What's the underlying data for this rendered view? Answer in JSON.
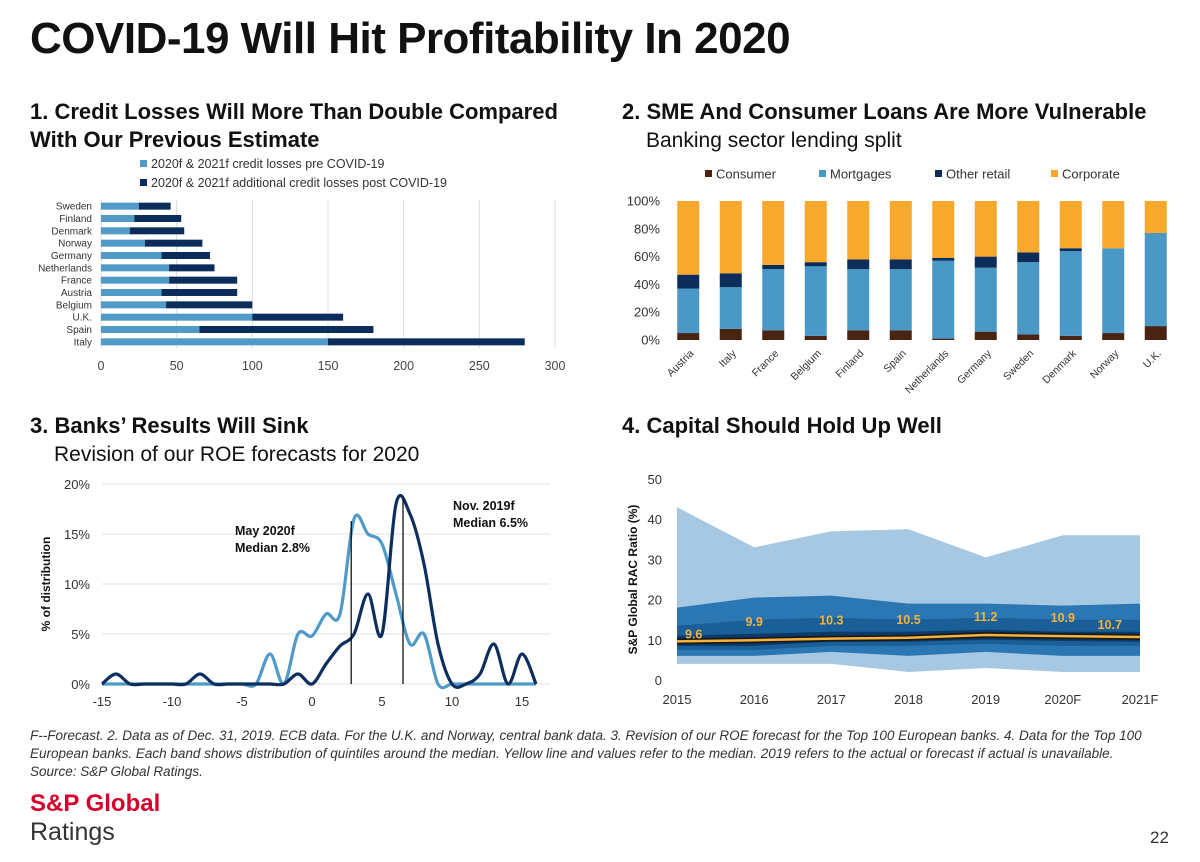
{
  "page": {
    "title": "COVID-19 Will Hit Profitability In 2020",
    "footnote": "F--Forecast. 2. Data as of Dec. 31, 2019. ECB data. For the U.K. and Norway, central bank data. 3. Revision of our ROE forecast for the Top 100 European banks. 4. Data for the Top 100 European banks. Each band shows distribution of quintiles around the median. Yellow line and values refer to the median. 2019 refers to the actual or forecast if actual is unavailable. Source: S&P Global Ratings.",
    "logo_line1": "S&P Global",
    "logo_line2": "Ratings",
    "page_number": "22"
  },
  "panels": {
    "p1": {
      "title_line1": "1. Credit Losses Will More Than Double Compared",
      "title_line2": "With Our Previous Estimate"
    },
    "p2": {
      "title": "2. SME And Consumer Loans Are More Vulnerable",
      "subtitle": "Banking sector lending split"
    },
    "p3": {
      "title": "3. Banks’ Results Will Sink",
      "subtitle": "Revision of our ROE forecasts for 2020"
    },
    "p4": {
      "title": "4. Capital Should Hold Up Well"
    }
  },
  "chart_data": [
    {
      "type": "bar",
      "orientation": "horizontal",
      "stacked": true,
      "categories": [
        "Sweden",
        "Finland",
        "Denmark",
        "Norway",
        "Germany",
        "Netherlands",
        "France",
        "Austria",
        "Belgium",
        "U.K.",
        "Spain",
        "Italy"
      ],
      "series": [
        {
          "name": "2020f & 2021f credit losses pre COVID-19",
          "color": "#4f9ac7",
          "values": [
            25,
            22,
            19,
            29,
            40,
            45,
            45,
            40,
            43,
            100,
            65,
            150
          ]
        },
        {
          "name": "2020f & 2021f additional credit losses post COVID-19",
          "color": "#0b2d5b",
          "values": [
            21,
            31,
            36,
            38,
            32,
            30,
            45,
            50,
            57,
            60,
            115,
            130
          ]
        }
      ],
      "xlim": [
        0,
        300
      ],
      "xticks": [
        "0",
        "50",
        "100",
        "150",
        "200",
        "250",
        "300"
      ],
      "grid": true,
      "legend": "top"
    },
    {
      "type": "bar",
      "stacked": true,
      "percent": true,
      "categories": [
        "Austria",
        "Italy",
        "France",
        "Belgium",
        "Finland",
        "Spain",
        "Netherlands",
        "Germany",
        "Sweden",
        "Denmark",
        "Norway",
        "U.K."
      ],
      "series": [
        {
          "name": "Consumer",
          "color": "#4a2412",
          "values": [
            5,
            8,
            7,
            3,
            7,
            7,
            1,
            6,
            4,
            3,
            5,
            10
          ]
        },
        {
          "name": "Mortgages",
          "color": "#4a98c5",
          "values": [
            32,
            30,
            44,
            50,
            44,
            44,
            56,
            46,
            52,
            61,
            61,
            67
          ]
        },
        {
          "name": "Other retail",
          "color": "#0c2c59",
          "values": [
            10,
            10,
            3,
            3,
            7,
            7,
            2,
            8,
            7,
            2,
            0,
            0
          ]
        },
        {
          "name": "Corporate",
          "color": "#f8a92d",
          "values": [
            53,
            52,
            46,
            44,
            42,
            42,
            41,
            40,
            37,
            34,
            34,
            23
          ]
        }
      ],
      "ylim": [
        0,
        100
      ],
      "yticks": [
        "0%",
        "20%",
        "40%",
        "60%",
        "80%",
        "100%"
      ],
      "legend": "top"
    },
    {
      "type": "line",
      "series": [
        {
          "name": "May 2020f",
          "color": "#4f9ac7",
          "x": [
            -15,
            -14,
            -13,
            -12,
            -11,
            -10,
            -9,
            -8,
            -7,
            -6,
            -5,
            -4,
            -3,
            -2,
            -1,
            0,
            1,
            2,
            3,
            4,
            5,
            6,
            7,
            8,
            9,
            10,
            11,
            12,
            13,
            14,
            15,
            16
          ],
          "y": [
            0,
            0,
            0,
            0,
            0,
            0,
            0,
            0,
            0,
            0,
            0,
            0,
            3,
            0,
            5,
            4.8,
            7,
            7,
            16.5,
            15,
            14,
            9,
            4,
            5,
            0,
            0,
            0,
            0,
            0,
            0,
            0,
            0
          ]
        },
        {
          "name": "Nov. 2019f",
          "color": "#0d2f5e",
          "x": [
            -15,
            -14,
            -13,
            -12,
            -11,
            -10,
            -9,
            -8,
            -7,
            -6,
            -5,
            -4,
            -3,
            -2,
            -1,
            0,
            1,
            2,
            3,
            4,
            5,
            6,
            7,
            8,
            9,
            10,
            11,
            12,
            13,
            14,
            15,
            16
          ],
          "y": [
            0,
            1,
            0,
            0,
            0,
            0,
            0,
            1,
            0,
            0,
            0,
            0,
            0,
            0,
            1,
            0,
            2,
            3.8,
            5,
            9,
            5,
            18,
            17,
            12,
            4,
            0,
            0,
            1,
            4,
            0,
            3,
            0
          ]
        }
      ],
      "annotations": [
        {
          "text": "May 2020f",
          "text2": "Median 2.8%",
          "x": 2.8
        },
        {
          "text": "Nov. 2019f",
          "text2": "Median 6.5%",
          "x": 6.5
        }
      ],
      "xlim": [
        -15,
        17
      ],
      "xticks": [
        "-15",
        "-10",
        "-5",
        "0",
        "5",
        "10",
        "15"
      ],
      "ylim": [
        0,
        20
      ],
      "yticks": [
        "0%",
        "5%",
        "10%",
        "15%",
        "20%"
      ],
      "ylabel": "% of distribution"
    },
    {
      "type": "area",
      "categories": [
        "2015",
        "2016",
        "2017",
        "2018",
        "2019",
        "2020F",
        "2021F"
      ],
      "bands": [
        {
          "color": "#a6c8e2",
          "low": [
            4,
            4,
            4,
            2,
            3,
            2,
            2
          ],
          "high": [
            43,
            33,
            37,
            37.5,
            30.5,
            36,
            36
          ]
        },
        {
          "color": "#2b77b3",
          "low": [
            6,
            6,
            7,
            6,
            7,
            6,
            6
          ],
          "high": [
            18,
            20.5,
            21,
            19,
            19,
            18.5,
            19
          ]
        },
        {
          "color": "#1a5f97",
          "low": [
            7.5,
            7.5,
            8.5,
            8.5,
            9,
            8.5,
            8.5
          ],
          "high": [
            13.5,
            15,
            15.5,
            15,
            15.5,
            15,
            15
          ]
        },
        {
          "color": "#0b3a6b",
          "low": [
            8.5,
            8.5,
            9.5,
            9.5,
            10,
            9.7,
            9.5
          ],
          "high": [
            11,
            11.5,
            12,
            12,
            12.5,
            12,
            12
          ]
        }
      ],
      "median": {
        "color": "#f5b33d",
        "values": [
          9.6,
          9.9,
          10.3,
          10.5,
          11.2,
          10.9,
          10.7
        ],
        "labels": [
          "9.6",
          "9.9",
          "10.3",
          "10.5",
          "11.2",
          "10.9",
          "10.7"
        ]
      },
      "ylim": [
        0,
        50
      ],
      "yticks": [
        "0",
        "10",
        "20",
        "30",
        "40",
        "50"
      ],
      "ylabel": "S&P Global RAC Ratio (%)"
    }
  ]
}
